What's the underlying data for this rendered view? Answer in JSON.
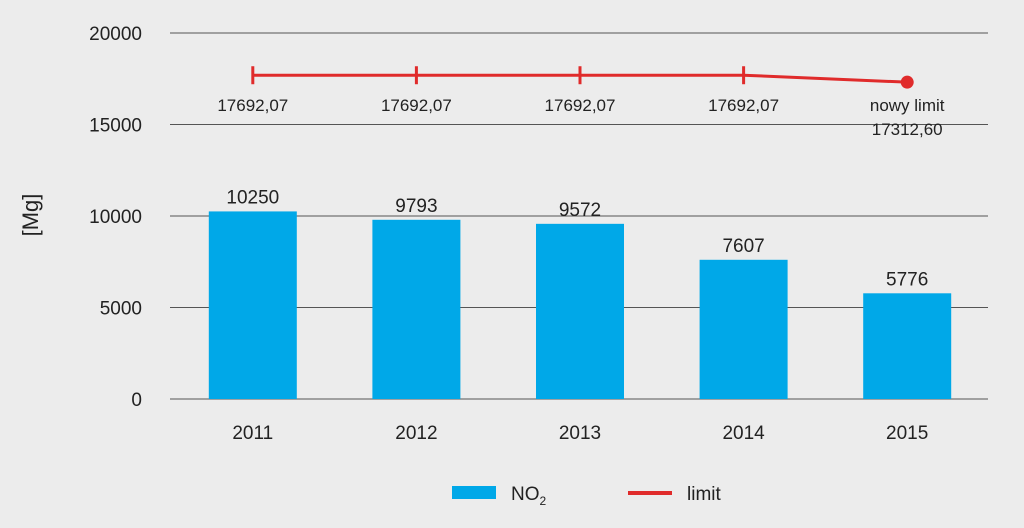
{
  "chart_data": {
    "type": "bar",
    "ylabel": "[Mg]",
    "ylim": [
      0,
      20000
    ],
    "yticks": [
      0,
      5000,
      10000,
      15000,
      20000
    ],
    "categories": [
      "2011",
      "2012",
      "2013",
      "2014",
      "2015"
    ],
    "grid": true,
    "series": [
      {
        "name": "NO₂",
        "type": "bar",
        "color": "#00a8e8",
        "values": [
          10250,
          9793,
          9572,
          7607,
          5776
        ],
        "labels": [
          "10250",
          "9793",
          "9572",
          "7607",
          "5776"
        ]
      },
      {
        "name": "limit",
        "type": "line",
        "color": "#e02b2b",
        "values": [
          17692.07,
          17692.07,
          17692.07,
          17692.07,
          17312.6
        ],
        "labels": [
          "17692,07",
          "17692,07",
          "17692,07",
          "17692,07",
          "17312,60"
        ],
        "label_prefix_last": "nowy limit"
      }
    ],
    "legend": {
      "position": "bottom",
      "items": [
        {
          "label": "NO",
          "subscript": "2",
          "kind": "bar",
          "color": "#00a8e8"
        },
        {
          "label": "limit",
          "kind": "line",
          "color": "#e02b2b"
        }
      ]
    }
  }
}
